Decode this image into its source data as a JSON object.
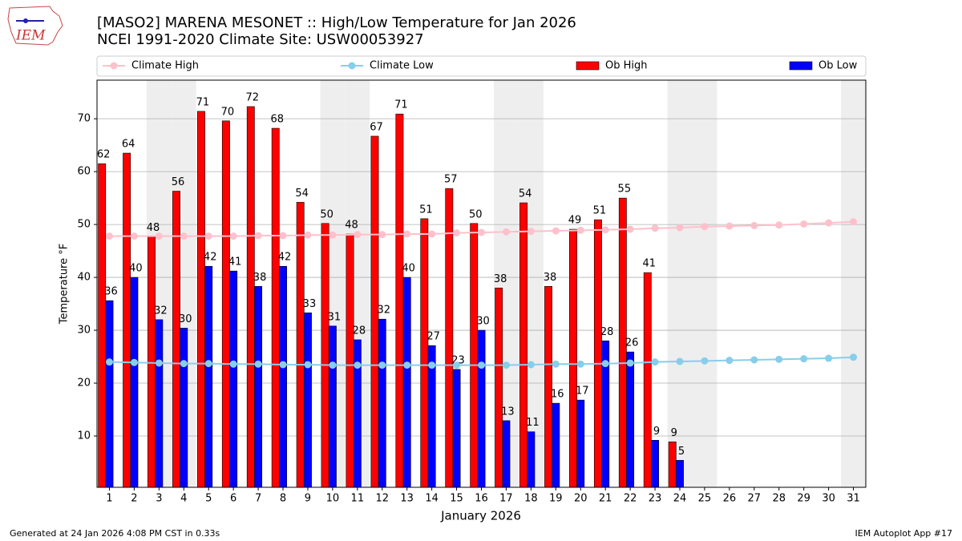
{
  "logo_text": "IEM",
  "footer_left": "Generated at 24 Jan 2026 4:08 PM CST in 0.33s",
  "footer_right": "IEM Autoplot App #17",
  "chart_data": {
    "type": "bar",
    "title": "[MASO2] MARENA MESONET :: High/Low Temperature for Jan 2026",
    "subtitle": "NCEI 1991-2020 Climate Site: USW00053927",
    "x_label": "January 2026",
    "y_label": "Temperature °F",
    "x": [
      1,
      2,
      3,
      4,
      5,
      6,
      7,
      8,
      9,
      10,
      11,
      12,
      13,
      14,
      15,
      16,
      17,
      18,
      19,
      20,
      21,
      22,
      23,
      24,
      25,
      26,
      27,
      28,
      29,
      30,
      31
    ],
    "xlim": [
      0.5,
      31.5
    ],
    "shaded_x": [
      3,
      4,
      10,
      11,
      17,
      18,
      24,
      25,
      31
    ],
    "ylim": [
      0.3,
      77.3
    ],
    "yticks": [
      10,
      20,
      30,
      40,
      50,
      60,
      70
    ],
    "grid": true,
    "legend": "top",
    "series": [
      {
        "name": "Climate High",
        "type": "line",
        "color": "#ffc0cb",
        "values": [
          47.8,
          47.8,
          47.8,
          47.8,
          47.8,
          47.8,
          47.9,
          47.9,
          48.0,
          48.0,
          48.1,
          48.1,
          48.2,
          48.2,
          48.4,
          48.5,
          48.6,
          48.7,
          48.8,
          48.9,
          49.0,
          49.1,
          49.3,
          49.4,
          49.6,
          49.7,
          49.8,
          49.9,
          50.1,
          50.3,
          50.5
        ]
      },
      {
        "name": "Climate Low",
        "type": "line",
        "color": "#87ceeb",
        "values": [
          24.0,
          23.9,
          23.8,
          23.7,
          23.7,
          23.6,
          23.6,
          23.5,
          23.5,
          23.4,
          23.4,
          23.4,
          23.4,
          23.4,
          23.4,
          23.4,
          23.4,
          23.5,
          23.6,
          23.6,
          23.7,
          23.8,
          24.0,
          24.1,
          24.2,
          24.3,
          24.4,
          24.5,
          24.6,
          24.7,
          24.9
        ]
      },
      {
        "name": "Ob High",
        "type": "bar",
        "color": "#ff0000",
        "values": [
          61.5,
          63.5,
          47.7,
          56.3,
          71.4,
          69.6,
          72.3,
          68.2,
          54.2,
          50.2,
          48.2,
          66.7,
          70.9,
          51.1,
          56.8,
          50.2,
          38.0,
          54.1,
          38.3,
          49.1,
          50.9,
          55.0,
          40.9,
          8.9,
          null,
          null,
          null,
          null,
          null,
          null,
          null
        ],
        "value_labels": [
          "62",
          "64",
          "48",
          "56",
          "71",
          "70",
          "72",
          "68",
          "54",
          "50",
          "48",
          "67",
          "71",
          "51",
          "57",
          "50",
          "38",
          "54",
          "38",
          "49",
          "51",
          "55",
          "41",
          "9",
          null,
          null,
          null,
          null,
          null,
          null,
          null
        ]
      },
      {
        "name": "Ob Low",
        "type": "bar",
        "color": "#0000ff",
        "values": [
          35.6,
          40.0,
          32.0,
          30.4,
          42.1,
          41.2,
          38.3,
          42.1,
          33.3,
          30.8,
          28.2,
          32.1,
          40.0,
          27.1,
          22.6,
          30.0,
          12.9,
          10.8,
          16.2,
          16.8,
          28.0,
          25.9,
          9.2,
          5.4,
          null,
          null,
          null,
          null,
          null,
          null,
          null
        ],
        "value_labels": [
          "36",
          "40",
          "32",
          "30",
          "42",
          "41",
          "38",
          "42",
          "33",
          "31",
          "28",
          "32",
          "40",
          "27",
          "23",
          "30",
          "13",
          "11",
          "16",
          "17",
          "28",
          "26",
          "9",
          "5",
          null,
          null,
          null,
          null,
          null,
          null,
          null
        ]
      }
    ]
  }
}
